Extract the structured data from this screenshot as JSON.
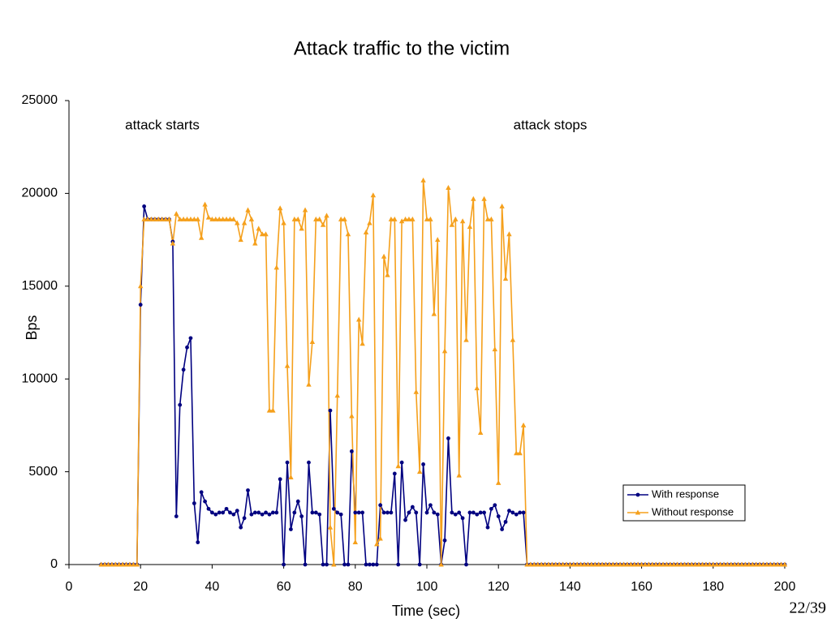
{
  "chart_data": {
    "type": "line",
    "title": "Attack traffic to the victim",
    "x_label": "Time (sec)",
    "y_label": "Bps",
    "annotations": [
      "attack starts",
      "attack stops"
    ],
    "page_number": "22/39",
    "legend": "lower right",
    "xlim": [
      0,
      200
    ],
    "xticks": [
      0,
      20,
      40,
      60,
      80,
      100,
      120,
      140,
      160,
      180,
      200
    ],
    "ylim": [
      0,
      25000
    ],
    "yticks": [
      0,
      5000,
      10000,
      15000,
      20000,
      25000
    ],
    "x": [
      9,
      10,
      11,
      12,
      13,
      14,
      15,
      16,
      17,
      18,
      19,
      20,
      21,
      22,
      23,
      24,
      25,
      26,
      27,
      28,
      29,
      30,
      31,
      32,
      33,
      34,
      35,
      36,
      37,
      38,
      39,
      40,
      41,
      42,
      43,
      44,
      45,
      46,
      47,
      48,
      49,
      50,
      51,
      52,
      53,
      54,
      55,
      56,
      57,
      58,
      59,
      60,
      61,
      62,
      63,
      64,
      65,
      66,
      67,
      68,
      69,
      70,
      71,
      72,
      73,
      74,
      75,
      76,
      77,
      78,
      79,
      80,
      81,
      82,
      83,
      84,
      85,
      86,
      87,
      88,
      89,
      90,
      91,
      92,
      93,
      94,
      95,
      96,
      97,
      98,
      99,
      100,
      101,
      102,
      103,
      104,
      105,
      106,
      107,
      108,
      109,
      110,
      111,
      112,
      113,
      114,
      115,
      116,
      117,
      118,
      119,
      120,
      121,
      122,
      123,
      124,
      125,
      126,
      127,
      128,
      129,
      130,
      131,
      132,
      133,
      134,
      135,
      136,
      137,
      138,
      139,
      140,
      141,
      142,
      143,
      144,
      145,
      146,
      147,
      148,
      149,
      150,
      151,
      152,
      153,
      154,
      155,
      156,
      157,
      158,
      159,
      160,
      161,
      162,
      163,
      164,
      165,
      166,
      167,
      168,
      169,
      170,
      171,
      172,
      173,
      174,
      175,
      176,
      177,
      178,
      179,
      180,
      181,
      182,
      183,
      184,
      185,
      186,
      187,
      188,
      189,
      190,
      191,
      192,
      193,
      194,
      195,
      196,
      197,
      198,
      199,
      200
    ],
    "series": [
      {
        "name": "With response",
        "color": "#000080",
        "marker": "circle",
        "values": [
          0,
          0,
          0,
          0,
          0,
          0,
          0,
          0,
          0,
          0,
          0,
          14000,
          19300,
          18600,
          18600,
          18600,
          18600,
          18600,
          18600,
          18600,
          17400,
          2600,
          8600,
          10500,
          11700,
          12200,
          3300,
          1200,
          3900,
          3400,
          3000,
          2800,
          2700,
          2800,
          2800,
          3000,
          2800,
          2700,
          2900,
          2000,
          2500,
          4000,
          2700,
          2800,
          2800,
          2700,
          2800,
          2700,
          2800,
          2800,
          4600,
          0,
          5500,
          1900,
          2800,
          3400,
          2600,
          0,
          5500,
          2800,
          2800,
          2700,
          0,
          0,
          8300,
          3000,
          2800,
          2700,
          0,
          0,
          6100,
          2800,
          2800,
          2800,
          0,
          0,
          0,
          0,
          3200,
          2800,
          2800,
          2800,
          4900,
          0,
          5500,
          2400,
          2800,
          3100,
          2800,
          0,
          5400,
          2800,
          3200,
          2800,
          2700,
          0,
          1300,
          6800,
          2800,
          2700,
          2800,
          2500,
          0,
          2800,
          2800,
          2700,
          2800,
          2800,
          2000,
          3000,
          3200,
          2600,
          1900,
          2300,
          2900,
          2800,
          2700,
          2800,
          2800,
          0,
          0,
          0,
          0,
          0,
          0,
          0,
          0,
          0,
          0,
          0,
          0,
          0,
          0,
          0,
          0,
          0,
          0,
          0,
          0,
          0,
          0,
          0,
          0,
          0,
          0,
          0,
          0,
          0,
          0,
          0,
          0,
          0,
          0,
          0,
          0,
          0,
          0,
          0,
          0,
          0,
          0,
          0,
          0,
          0,
          0,
          0,
          0,
          0,
          0,
          0,
          0,
          0,
          0,
          0,
          0,
          0,
          0,
          0,
          0,
          0,
          0,
          0,
          0,
          0,
          0,
          0,
          0,
          0,
          0,
          0,
          0,
          0
        ]
      },
      {
        "name": "Without response",
        "color": "#f5a01c",
        "marker": "triangle",
        "values": [
          0,
          0,
          0,
          0,
          0,
          0,
          0,
          0,
          0,
          0,
          0,
          15000,
          18600,
          18600,
          18600,
          18600,
          18600,
          18600,
          18600,
          18600,
          17300,
          18900,
          18600,
          18600,
          18600,
          18600,
          18600,
          18600,
          17600,
          19400,
          18700,
          18600,
          18600,
          18600,
          18600,
          18600,
          18600,
          18600,
          18400,
          17500,
          18400,
          19100,
          18600,
          17300,
          18100,
          17800,
          17800,
          8300,
          8300,
          16000,
          19200,
          18400,
          10700,
          4700,
          18600,
          18600,
          18100,
          19100,
          9700,
          12000,
          18600,
          18600,
          18300,
          18800,
          2000,
          0,
          9100,
          18600,
          18600,
          17800,
          8000,
          1200,
          13200,
          11900,
          17900,
          18400,
          19900,
          1100,
          1400,
          16600,
          15600,
          18600,
          18600,
          5300,
          18500,
          18600,
          18600,
          18600,
          9300,
          5000,
          20700,
          18600,
          18600,
          13500,
          17500,
          0,
          11500,
          20300,
          18300,
          18600,
          4800,
          18500,
          12100,
          18200,
          19700,
          9500,
          7100,
          19700,
          18600,
          18600,
          11600,
          4400,
          19300,
          15400,
          17800,
          12100,
          6000,
          6000,
          7500,
          0,
          0,
          0,
          0,
          0,
          0,
          0,
          0,
          0,
          0,
          0,
          0,
          0,
          0,
          0,
          0,
          0,
          0,
          0,
          0,
          0,
          0,
          0,
          0,
          0,
          0,
          0,
          0,
          0,
          0,
          0,
          0,
          0,
          0,
          0,
          0,
          0,
          0,
          0,
          0,
          0,
          0,
          0,
          0,
          0,
          0,
          0,
          0,
          0,
          0,
          0,
          0,
          0,
          0,
          0,
          0,
          0,
          0,
          0,
          0,
          0,
          0,
          0,
          0,
          0,
          0,
          0,
          0,
          0,
          0,
          0,
          0,
          0
        ]
      }
    ]
  }
}
